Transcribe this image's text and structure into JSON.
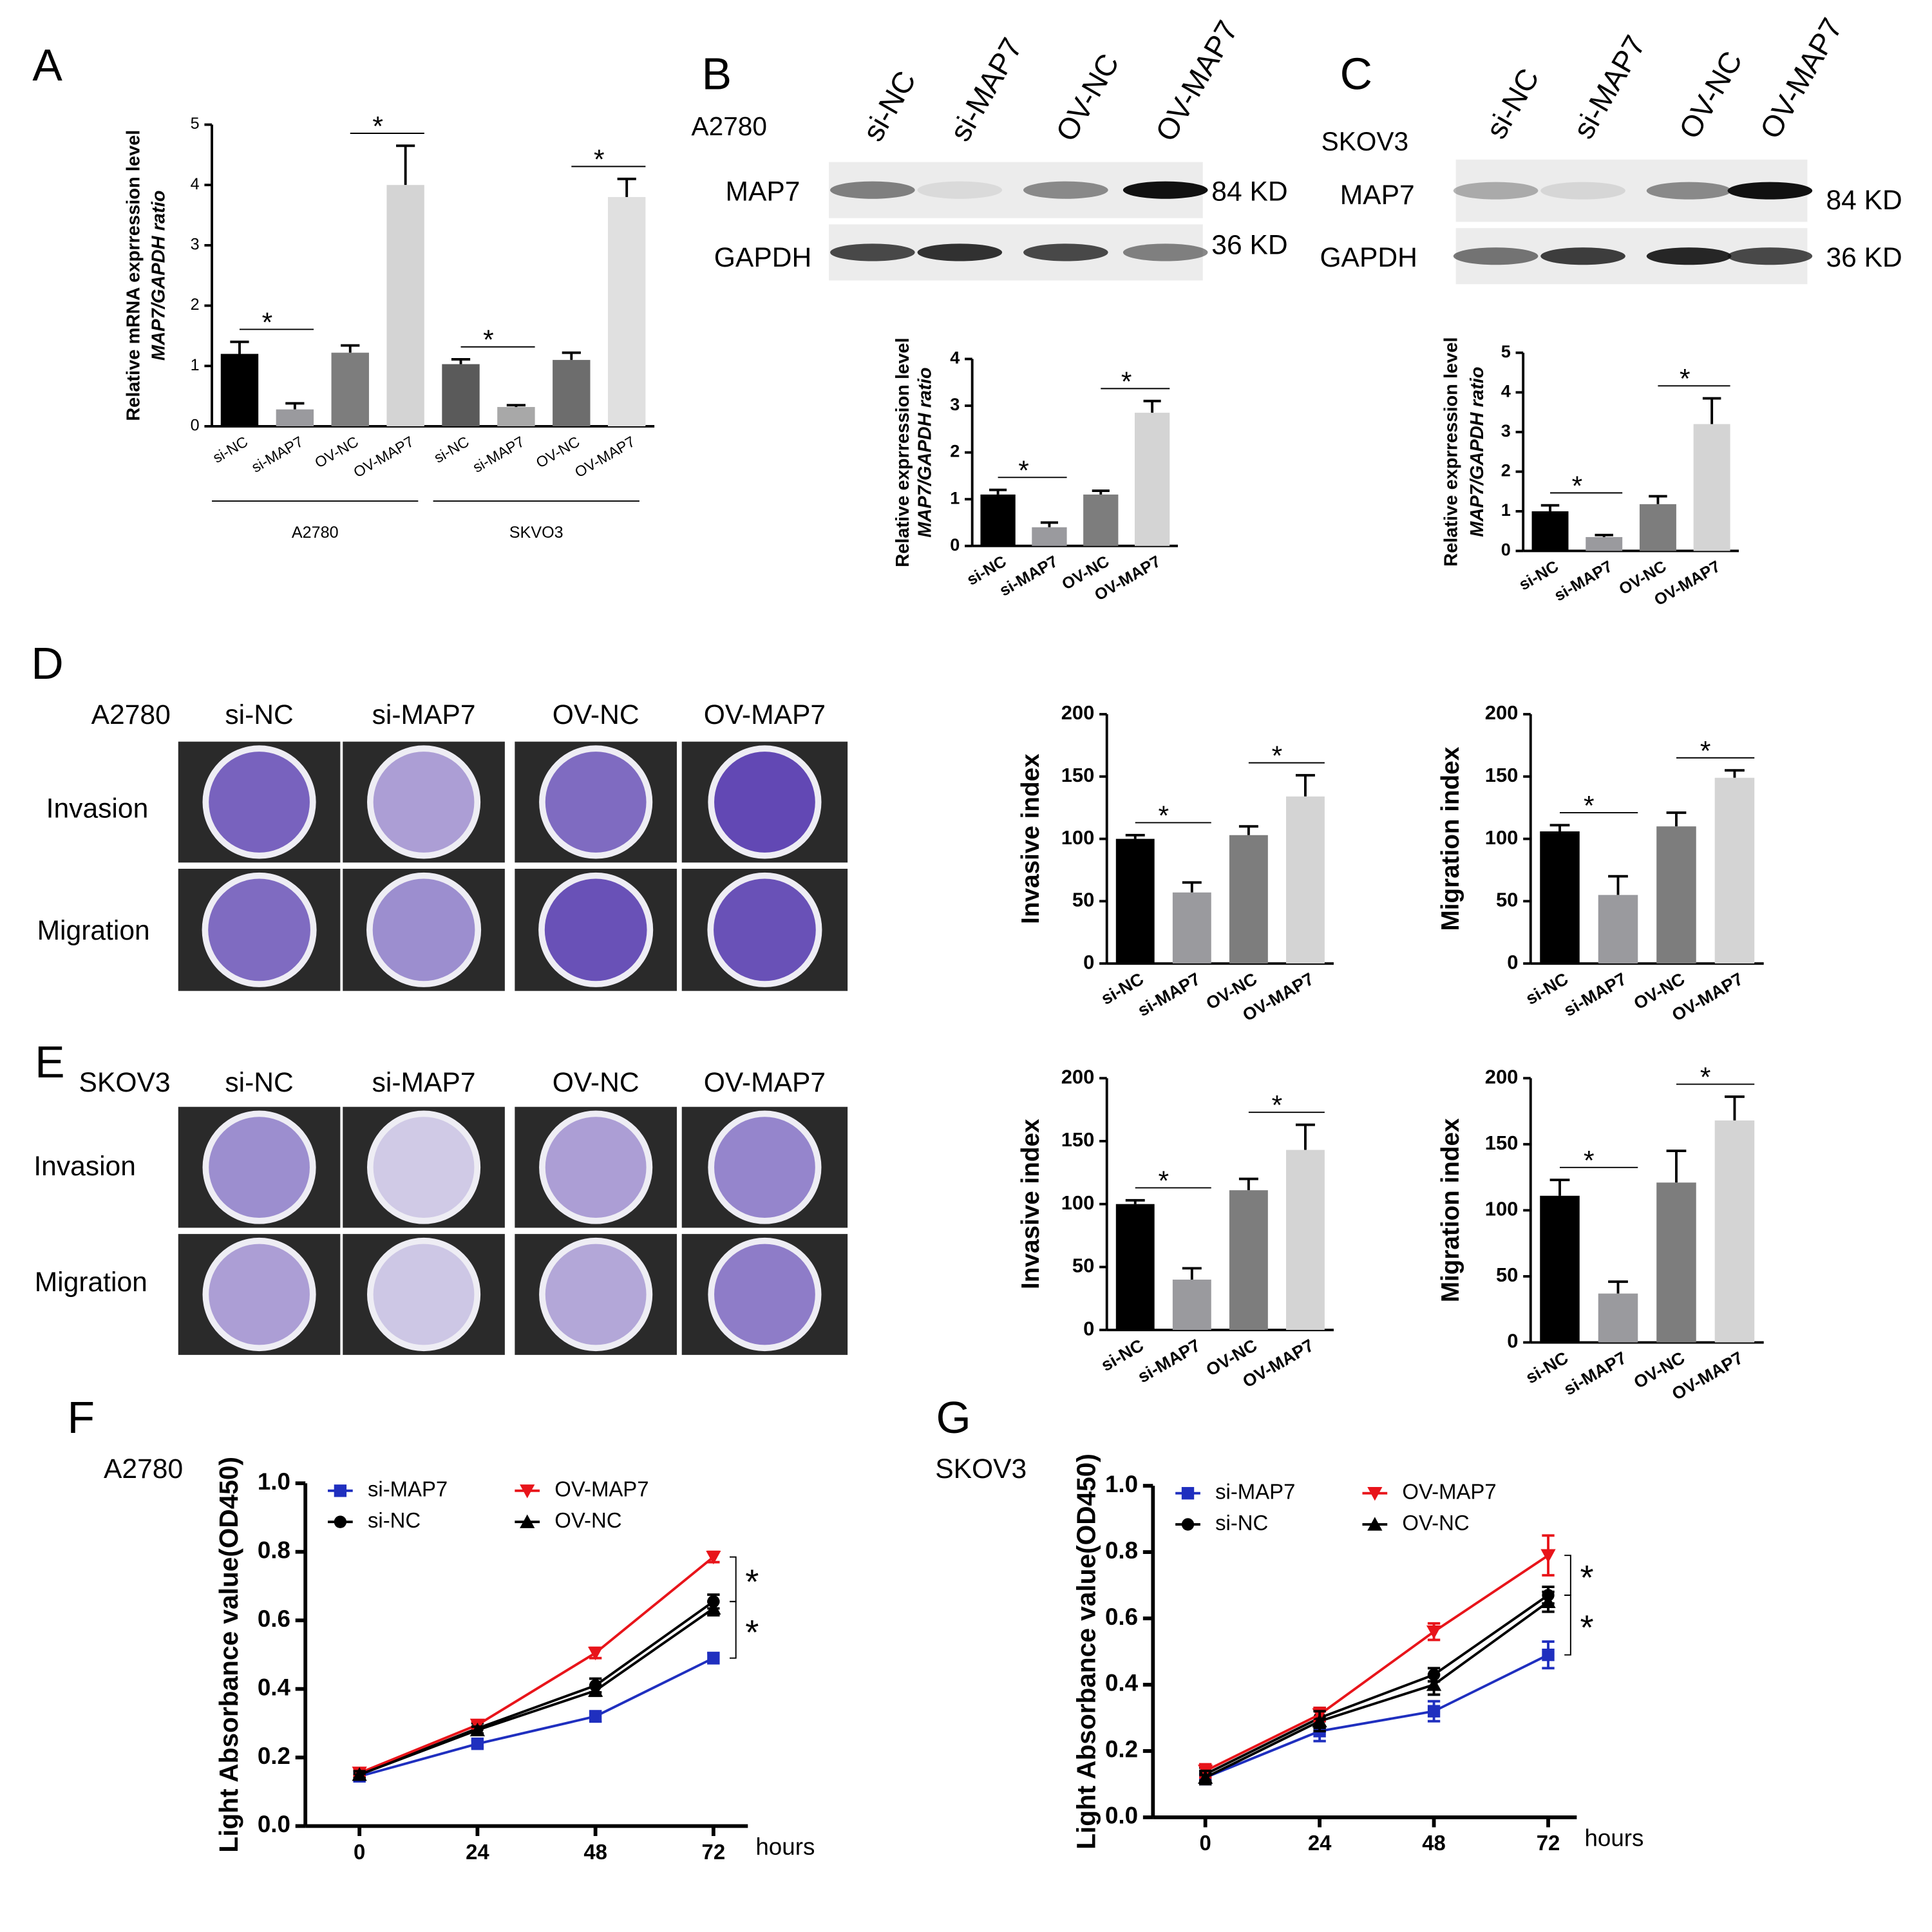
{
  "figure": {
    "panel_labels": [
      "A",
      "B",
      "C",
      "D",
      "E",
      "F",
      "G"
    ]
  },
  "blots": [
    {
      "cell_line": "A2780",
      "lanes": [
        "si-NC",
        "si-MAP7",
        "OV-NC",
        "OV-MAP7"
      ],
      "bands": [
        {
          "protein": "MAP7",
          "size": "84 KD"
        },
        {
          "protein": "GAPDH",
          "size": "36 KD"
        }
      ]
    },
    {
      "cell_line": "SKOV3",
      "lanes": [
        "si-NC",
        "si-MAP7",
        "OV-NC",
        "OV-MAP7"
      ],
      "bands": [
        {
          "protein": "MAP7",
          "size": "84 KD"
        },
        {
          "protein": "GAPDH",
          "size": "36 KD"
        }
      ]
    }
  ],
  "wells": [
    {
      "cell_line": "A2780",
      "columns": [
        "si-NC",
        "si-MAP7",
        "OV-NC",
        "OV-MAP7"
      ],
      "rows": [
        "Invasion",
        "Migration"
      ]
    },
    {
      "cell_line": "SKOV3",
      "columns": [
        "si-NC",
        "si-MAP7",
        "OV-NC",
        "OV-MAP7"
      ],
      "rows": [
        "Invasion",
        "Migration"
      ]
    }
  ],
  "chart_data": [
    {
      "type": "bar",
      "ylabel": [
        "Relative mRNA exprression level",
        "MAP7/GAPDH ratio"
      ],
      "categories": [
        "si-NC",
        "si-MAP7",
        "OV-NC",
        "OV-MAP7",
        "si-NC",
        "si-MAP7",
        "OV-NC",
        "OV-MAP7"
      ],
      "values": [
        1.2,
        0.28,
        1.22,
        4.0,
        1.03,
        0.32,
        1.1,
        3.8
      ],
      "errors": [
        0.2,
        0.1,
        0.12,
        0.65,
        0.08,
        0.03,
        0.12,
        0.3
      ],
      "colors": [
        "#000000",
        "#9a9a9e",
        "#7d7d7d",
        "#d4d4d4",
        "#5a5a5a",
        "#a8a8a8",
        "#6d6d6d",
        "#e0e0e0"
      ],
      "groups": [
        "A2780",
        "SKVO3"
      ],
      "ylim": [
        0,
        5
      ],
      "yticks": [
        0,
        1,
        2,
        3,
        4,
        5
      ],
      "annotations": [
        "*",
        "*",
        "*",
        "*"
      ]
    },
    {
      "type": "bar",
      "ylabel": [
        "Relative exprression level",
        "MAP7/GAPDH ratio"
      ],
      "categories": [
        "si-NC",
        "si-MAP7",
        "OV-NC",
        "OV-MAP7"
      ],
      "values": [
        1.1,
        0.4,
        1.1,
        2.85
      ],
      "errors": [
        0.1,
        0.1,
        0.08,
        0.25
      ],
      "colors": [
        "#000000",
        "#9a9a9e",
        "#7d7d7d",
        "#d4d4d4"
      ],
      "ylim": [
        0,
        4
      ],
      "yticks": [
        0,
        1,
        2,
        3,
        4
      ],
      "annotations": [
        "*",
        "*"
      ]
    },
    {
      "type": "bar",
      "ylabel": [
        "Relative exprression level",
        "MAP7/GAPDH ratio"
      ],
      "categories": [
        "si-NC",
        "si-MAP7",
        "OV-NC",
        "OV-MAP7"
      ],
      "values": [
        1.0,
        0.35,
        1.18,
        3.2
      ],
      "errors": [
        0.15,
        0.05,
        0.2,
        0.65
      ],
      "colors": [
        "#000000",
        "#9a9a9e",
        "#7d7d7d",
        "#d4d4d4"
      ],
      "ylim": [
        0,
        5
      ],
      "yticks": [
        0,
        1,
        2,
        3,
        4,
        5
      ],
      "annotations": [
        "*",
        "*"
      ]
    },
    {
      "type": "bar",
      "ylabel": [
        "Invasive index"
      ],
      "categories": [
        "si-NC",
        "si-MAP7",
        "OV-NC",
        "OV-MAP7"
      ],
      "values": [
        100,
        57,
        103,
        134
      ],
      "errors": [
        3,
        8,
        7,
        17
      ],
      "colors": [
        "#000000",
        "#9a9a9e",
        "#7d7d7d",
        "#d4d4d4"
      ],
      "ylim": [
        0,
        200
      ],
      "yticks": [
        0,
        50,
        100,
        150,
        200
      ],
      "annotations": [
        "*",
        "*"
      ]
    },
    {
      "type": "bar",
      "ylabel": [
        "Migration index"
      ],
      "categories": [
        "si-NC",
        "si-MAP7",
        "OV-NC",
        "OV-MAP7"
      ],
      "values": [
        106,
        55,
        110,
        149
      ],
      "errors": [
        5,
        15,
        11,
        6
      ],
      "colors": [
        "#000000",
        "#9a9a9e",
        "#7d7d7d",
        "#d4d4d4"
      ],
      "ylim": [
        0,
        200
      ],
      "yticks": [
        0,
        50,
        100,
        150,
        200
      ],
      "annotations": [
        "*",
        "*"
      ]
    },
    {
      "type": "bar",
      "ylabel": [
        "Invasive index"
      ],
      "categories": [
        "si-NC",
        "si-MAP7",
        "OV-NC",
        "OV-MAP7"
      ],
      "values": [
        100,
        40,
        111,
        143
      ],
      "errors": [
        3,
        9,
        9,
        20
      ],
      "colors": [
        "#000000",
        "#9a9a9e",
        "#7d7d7d",
        "#d4d4d4"
      ],
      "ylim": [
        0,
        200
      ],
      "yticks": [
        0,
        50,
        100,
        150,
        200
      ],
      "annotations": [
        "*",
        "*"
      ]
    },
    {
      "type": "bar",
      "ylabel": [
        "Migration index"
      ],
      "categories": [
        "si-NC",
        "si-MAP7",
        "OV-NC",
        "OV-MAP7"
      ],
      "values": [
        111,
        37,
        121,
        168
      ],
      "errors": [
        12,
        9,
        24,
        18
      ],
      "colors": [
        "#000000",
        "#9a9a9e",
        "#7d7d7d",
        "#d4d4d4"
      ],
      "ylim": [
        0,
        200
      ],
      "yticks": [
        0,
        50,
        100,
        150,
        200
      ],
      "annotations": [
        "*",
        "*"
      ]
    },
    {
      "type": "line",
      "subtitle": "A2780",
      "ylabel": "Light Absorbance value(OD450)",
      "xlabel": "hours",
      "x": [
        0,
        24,
        48,
        72
      ],
      "xlim": [
        -11,
        79
      ],
      "xticks": [
        0,
        24,
        48,
        72
      ],
      "ylim": [
        0,
        1
      ],
      "yticks": [
        {
          "value": 0,
          "label": "0.0"
        },
        0.2,
        0.4,
        0.6,
        0.8,
        {
          "value": 1,
          "label": "1.0"
        }
      ],
      "series": [
        {
          "name": "si-MAP7",
          "color": "#1f2fbf",
          "marker": "square",
          "values": [
            0.145,
            0.24,
            0.32,
            0.49
          ],
          "errors": [
            0.01,
            0.01,
            0.015,
            0.015
          ]
        },
        {
          "name": "si-NC",
          "color": "#000000",
          "marker": "circle",
          "values": [
            0.15,
            0.285,
            0.41,
            0.655
          ],
          "errors": [
            0.01,
            0.015,
            0.02,
            0.02
          ]
        },
        {
          "name": "OV-MAP7",
          "color": "#e8141a",
          "marker": "triangle-down",
          "values": [
            0.155,
            0.295,
            0.505,
            0.785
          ],
          "errors": [
            0.01,
            0.01,
            0.015,
            0.015
          ]
        },
        {
          "name": "OV-NC",
          "color": "#000000",
          "marker": "triangle-up",
          "values": [
            0.15,
            0.28,
            0.395,
            0.635
          ],
          "errors": [
            0.01,
            0.01,
            0.015,
            0.02
          ]
        }
      ],
      "annotations": [
        "*",
        "*"
      ]
    },
    {
      "type": "line",
      "subtitle": "SKOV3",
      "ylabel": "Light Absorbance value(OD450)",
      "xlabel": "hours",
      "x": [
        0,
        24,
        48,
        72
      ],
      "xlim": [
        -11,
        78
      ],
      "xticks": [
        0,
        24,
        48,
        72
      ],
      "ylim": [
        0,
        1
      ],
      "yticks": [
        {
          "value": 0,
          "label": "0.0"
        },
        0.2,
        0.4,
        0.6,
        0.8,
        {
          "value": 1,
          "label": "1.0"
        }
      ],
      "series": [
        {
          "name": "si-MAP7",
          "color": "#1f2fbf",
          "marker": "square",
          "values": [
            0.12,
            0.26,
            0.32,
            0.49
          ],
          "errors": [
            0.02,
            0.03,
            0.03,
            0.04
          ]
        },
        {
          "name": "si-NC",
          "color": "#000000",
          "marker": "circle",
          "values": [
            0.13,
            0.3,
            0.43,
            0.67
          ],
          "errors": [
            0.02,
            0.03,
            0.02,
            0.025
          ]
        },
        {
          "name": "OV-MAP7",
          "color": "#e8141a",
          "marker": "triangle-down",
          "values": [
            0.14,
            0.31,
            0.56,
            0.79
          ],
          "errors": [
            0.02,
            0.02,
            0.025,
            0.06
          ]
        },
        {
          "name": "OV-NC",
          "color": "#000000",
          "marker": "triangle-up",
          "values": [
            0.12,
            0.29,
            0.4,
            0.65
          ],
          "errors": [
            0.02,
            0.03,
            0.03,
            0.03
          ]
        }
      ],
      "annotations": [
        "*",
        "*"
      ]
    }
  ]
}
